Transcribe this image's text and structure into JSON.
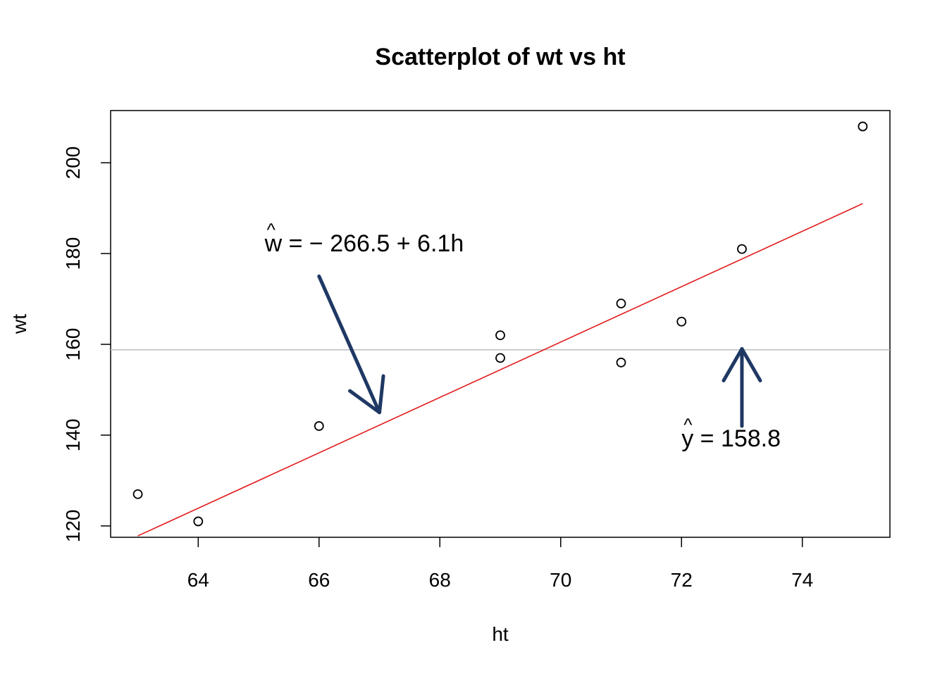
{
  "chart_data": {
    "type": "scatter",
    "title": "Scatterplot of wt vs ht",
    "xlabel": "ht",
    "ylabel": "wt",
    "xlim": [
      62.55,
      75.45
    ],
    "ylim": [
      117.5,
      211.5
    ],
    "x_ticks": [
      64,
      66,
      68,
      70,
      72,
      74
    ],
    "y_ticks": [
      120,
      140,
      160,
      180,
      200
    ],
    "points": [
      {
        "x": 63,
        "y": 127
      },
      {
        "x": 64,
        "y": 121
      },
      {
        "x": 66,
        "y": 142
      },
      {
        "x": 69,
        "y": 157
      },
      {
        "x": 69,
        "y": 162
      },
      {
        "x": 71,
        "y": 169
      },
      {
        "x": 71,
        "y": 156
      },
      {
        "x": 72,
        "y": 165
      },
      {
        "x": 73,
        "y": 181
      },
      {
        "x": 75,
        "y": 208
      }
    ],
    "regression_line": {
      "intercept": -266.5,
      "slope": 6.1,
      "x_from": 63,
      "x_to": 75,
      "color": "#e31a1c"
    },
    "mean_line": {
      "y": 158.8,
      "color": "#bebebe"
    },
    "arrow_color": "#1f3864",
    "annotations": [
      {
        "name": "regression-equation",
        "text": "w = − 266.5 + 6.1h",
        "hat_char": "^",
        "x": 65.1,
        "y": 180.5,
        "arrow_from": {
          "x": 66.0,
          "y": 175
        },
        "arrow_to": {
          "x": 67.0,
          "y": 145
        }
      },
      {
        "name": "mean-equation",
        "text": "y = 158.8",
        "hat_char": "^",
        "x": 72.0,
        "y": 137.5,
        "arrow_from": {
          "x": 73.0,
          "y": 142
        },
        "arrow_to": {
          "x": 73.0,
          "y": 159
        }
      }
    ]
  }
}
